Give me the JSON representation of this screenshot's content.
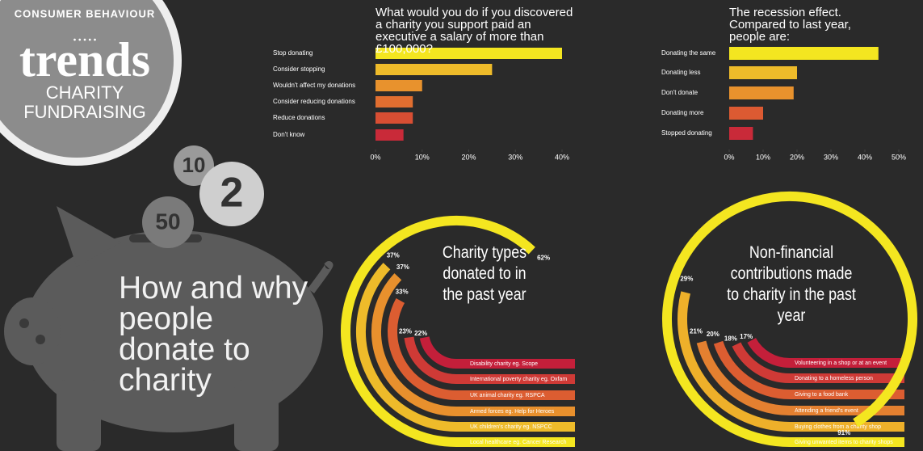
{
  "badge": {
    "top": "CONSUMER BEHAVIOUR",
    "brand": "trends",
    "subtitle": "CHARITY FUNDRAISING"
  },
  "headline": "How and why people donate to charity",
  "coins": [
    "10",
    "2",
    "50"
  ],
  "chart_data": [
    {
      "type": "bar",
      "title": "What would you do if you discovered a charity you support paid an executive a salary of more than £100,000?",
      "categories": [
        "Stop donating",
        "Consider stopping",
        "Wouldn't affect my donations",
        "Consider reducing donations",
        "Reduce donations",
        "Don't know"
      ],
      "values": [
        40,
        25,
        10,
        8,
        8,
        6
      ],
      "colors": [
        "#f4e620",
        "#eebb2a",
        "#e8922d",
        "#e16e30",
        "#d84e33",
        "#c92a39"
      ],
      "xlim": [
        0,
        40
      ],
      "xticks": [
        {
          "value": 0,
          "label": "0%"
        },
        {
          "value": 10,
          "label": "10%"
        },
        {
          "value": 20,
          "label": "20%"
        },
        {
          "value": 30,
          "label": "30%"
        },
        {
          "value": 40,
          "label": "40%"
        }
      ]
    },
    {
      "type": "bar",
      "title": "The recession effect. Compared to last year, people are:",
      "categories": [
        "Donating the same",
        "Donating less",
        "Don't donate",
        "Donating more",
        "Stopped donating"
      ],
      "values": [
        44,
        20,
        19,
        10,
        7
      ],
      "colors": [
        "#f4e620",
        "#eebb2a",
        "#e8922d",
        "#dc5a32",
        "#c92a39"
      ],
      "xlim": [
        0,
        50
      ],
      "xticks": [
        {
          "value": 0,
          "label": "0%"
        },
        {
          "value": 10,
          "label": "10%"
        },
        {
          "value": 20,
          "label": "20%"
        },
        {
          "value": 30,
          "label": "30%"
        },
        {
          "value": 40,
          "label": "40%"
        },
        {
          "value": 50,
          "label": "50%"
        }
      ]
    },
    {
      "type": "radial",
      "title": "Charity types donated to in the past year",
      "categories": [
        "Disability charity eg. Scope",
        "International poverty charity eg. Oxfam",
        "UK animal charity eg. RSPCA",
        "Armed forces eg. Help for Heroes",
        "UK children's charity eg. NSPCC",
        "Local healthcare eg. Cancer Research"
      ],
      "values": [
        22,
        23,
        33,
        37,
        37,
        62
      ],
      "value_labels": [
        "22%",
        "23%",
        "33%",
        "37%",
        "37%",
        "62%"
      ],
      "colors": [
        "#c41f3a",
        "#cf3a36",
        "#dc5d31",
        "#e8902d",
        "#eebb2a",
        "#f4e620"
      ]
    },
    {
      "type": "radial",
      "title": "Non-financial contributions made to charity in the past year",
      "categories": [
        "Volunteering in a shop or at an event",
        "Donating to a homeless person",
        "Giving to a food bank",
        "Attending a friend's event",
        "Buying clothes from a charity shop",
        "Giving unwanted items to charity shops"
      ],
      "values": [
        17,
        18,
        20,
        21,
        29,
        91
      ],
      "value_labels": [
        "17%",
        "18%",
        "20%",
        "21%",
        "29%",
        "91%"
      ],
      "colors": [
        "#c41f3a",
        "#cf3a36",
        "#dc5d31",
        "#e48030",
        "#eeb02a",
        "#f4e620"
      ]
    }
  ]
}
